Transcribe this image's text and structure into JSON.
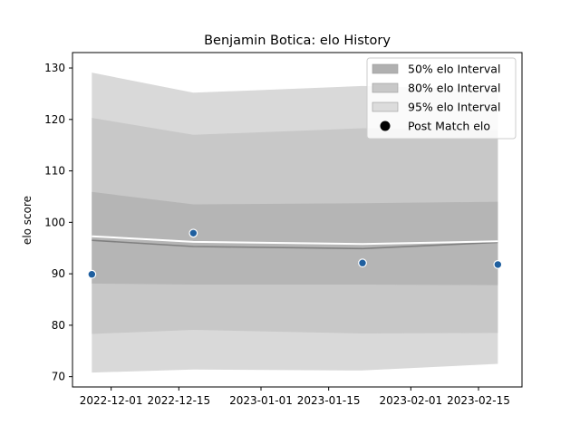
{
  "chart_data": {
    "type": "line",
    "title": "Benjamin Botica: elo History",
    "xlabel": "",
    "ylabel": "elo score",
    "ylim": [
      68,
      133
    ],
    "xlim": [
      "2022-11-23",
      "2023-02-24"
    ],
    "grid": false,
    "legend_position": "top-right",
    "x_tick_labels": [
      "2022-12-01",
      "2022-12-15",
      "2023-01-01",
      "2023-01-15",
      "2023-02-01",
      "2023-02-15"
    ],
    "y_ticks": [
      70,
      80,
      90,
      100,
      110,
      120,
      130
    ],
    "dates": [
      "2022-11-27",
      "2022-12-18",
      "2023-01-22",
      "2023-02-19"
    ],
    "series": [
      {
        "name": "",
        "role": "center_line",
        "color": "#808080",
        "values": [
          96.5,
          95.3,
          94.9,
          96.1
        ]
      },
      {
        "name": "",
        "role": "reference_line",
        "color": "#ffffff",
        "values": [
          97.3,
          96.2,
          95.8,
          96.3
        ]
      },
      {
        "name": "Post Match elo",
        "role": "points",
        "color": "#1f5f9f",
        "values": [
          89.9,
          97.9,
          92.1,
          91.8
        ]
      }
    ],
    "bands": [
      {
        "name": "95% elo Interval",
        "color": "#d9d9d9",
        "lower": [
          70.8,
          71.4,
          71.2,
          72.5
        ],
        "upper": [
          129.1,
          125.2,
          126.5,
          125.8
        ]
      },
      {
        "name": "80% elo Interval",
        "color": "#c8c8c8",
        "lower": [
          78.3,
          79.1,
          78.4,
          78.5
        ],
        "upper": [
          120.3,
          117.0,
          118.3,
          118.0
        ]
      },
      {
        "name": "50% elo Interval",
        "color": "#b5b5b5",
        "lower": [
          88.1,
          87.9,
          87.9,
          87.8
        ],
        "upper": [
          105.9,
          103.5,
          103.7,
          104.0
        ]
      }
    ],
    "legend": [
      {
        "label": "50% elo Interval",
        "kind": "patch",
        "color": "#b0b0b0"
      },
      {
        "label": "80% elo Interval",
        "kind": "patch",
        "color": "#c8c8c8"
      },
      {
        "label": "95% elo Interval",
        "kind": "patch",
        "color": "#dcdcdc"
      },
      {
        "label": "Post Match elo",
        "kind": "marker",
        "color": "#000000"
      }
    ]
  }
}
